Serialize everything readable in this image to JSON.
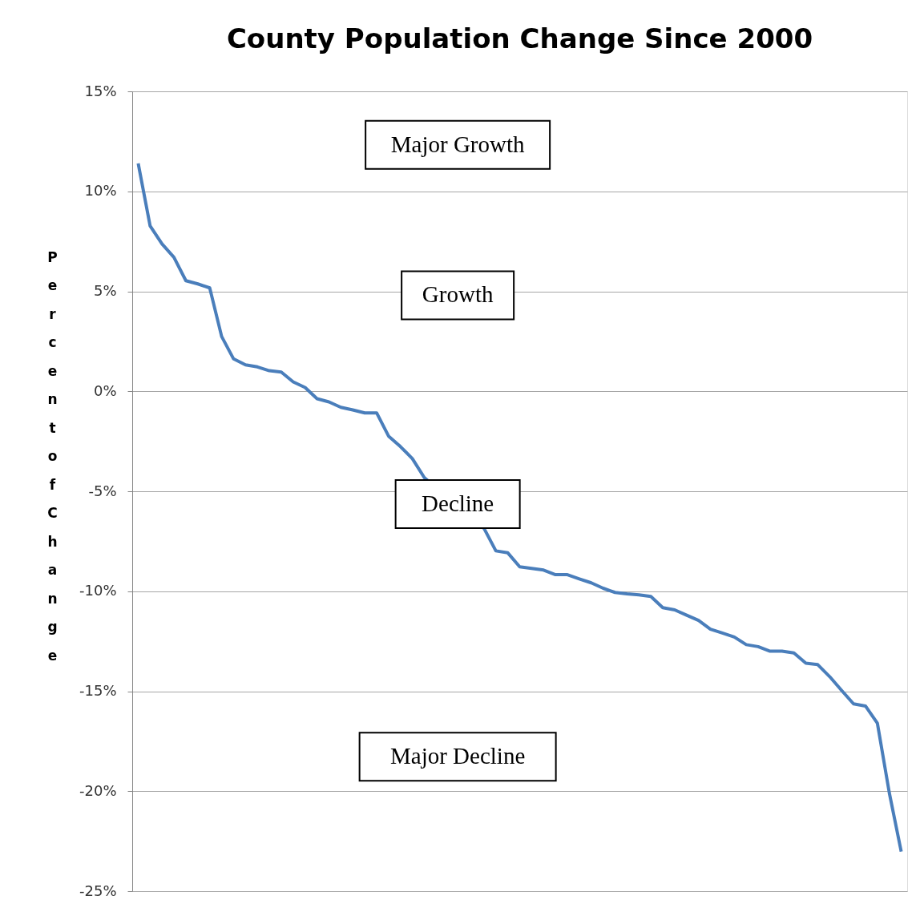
{
  "chart_data": {
    "type": "line",
    "title": "County Population Change Since 2000",
    "ylabel": "Percent of Change",
    "categories": [
      null,
      null,
      null,
      null,
      null,
      null,
      null,
      null,
      null,
      null,
      null,
      null,
      null,
      null,
      null,
      null,
      null,
      null,
      null,
      null,
      null,
      null,
      null,
      null,
      null,
      null,
      null,
      null,
      null,
      null,
      null,
      null,
      null,
      null,
      null,
      null,
      null,
      null,
      null,
      null,
      null,
      null,
      null,
      null,
      null,
      null,
      null,
      null,
      null,
      null,
      null,
      null,
      null,
      null,
      null,
      null,
      null,
      null,
      null,
      null,
      null,
      null,
      null,
      null,
      null
    ],
    "series": [
      {
        "color": "#4a7ebb",
        "values": [
          11.4,
          8.27,
          7.37,
          6.7,
          5.53,
          5.37,
          5.17,
          2.74,
          1.62,
          1.32,
          1.22,
          1.03,
          0.96,
          0.47,
          0.19,
          -0.37,
          -0.53,
          -0.8,
          -0.93,
          -1.08,
          -1.08,
          -2.24,
          -2.77,
          -3.37,
          -4.32,
          null,
          null,
          null,
          null,
          -6.85,
          -7.98,
          -8.08,
          -8.78,
          -8.86,
          -8.94,
          -9.17,
          -9.17,
          -9.38,
          -9.58,
          -9.85,
          -10.06,
          -10.13,
          -10.18,
          -10.26,
          -10.82,
          -10.93,
          -11.2,
          -11.46,
          -11.9,
          -12.09,
          -12.29,
          -12.67,
          -12.77,
          -13.0,
          -13.0,
          -13.09,
          -13.6,
          -13.67,
          -14.27,
          -14.96,
          -15.63,
          -15.74,
          -16.6,
          -20.08,
          -23.02
        ]
      }
    ],
    "ylim": [
      -25,
      15
    ],
    "yticks": [
      {
        "value": 15,
        "label": "15%"
      },
      {
        "value": 10,
        "label": "10%"
      },
      {
        "value": 5,
        "label": "5%"
      },
      {
        "value": 0,
        "label": "0%"
      },
      {
        "value": -5,
        "label": "-5%"
      },
      {
        "value": -10,
        "label": "-10%"
      },
      {
        "value": -15,
        "label": "-15%"
      },
      {
        "value": -20,
        "label": "-20%"
      },
      {
        "value": -25,
        "label": "-25%"
      }
    ],
    "tick_labels": "y",
    "grid": "y",
    "marker": "none",
    "line_style": "solid",
    "annotations": [
      "Major Growth",
      "Growth",
      "Decline",
      "Major Decline"
    ]
  }
}
